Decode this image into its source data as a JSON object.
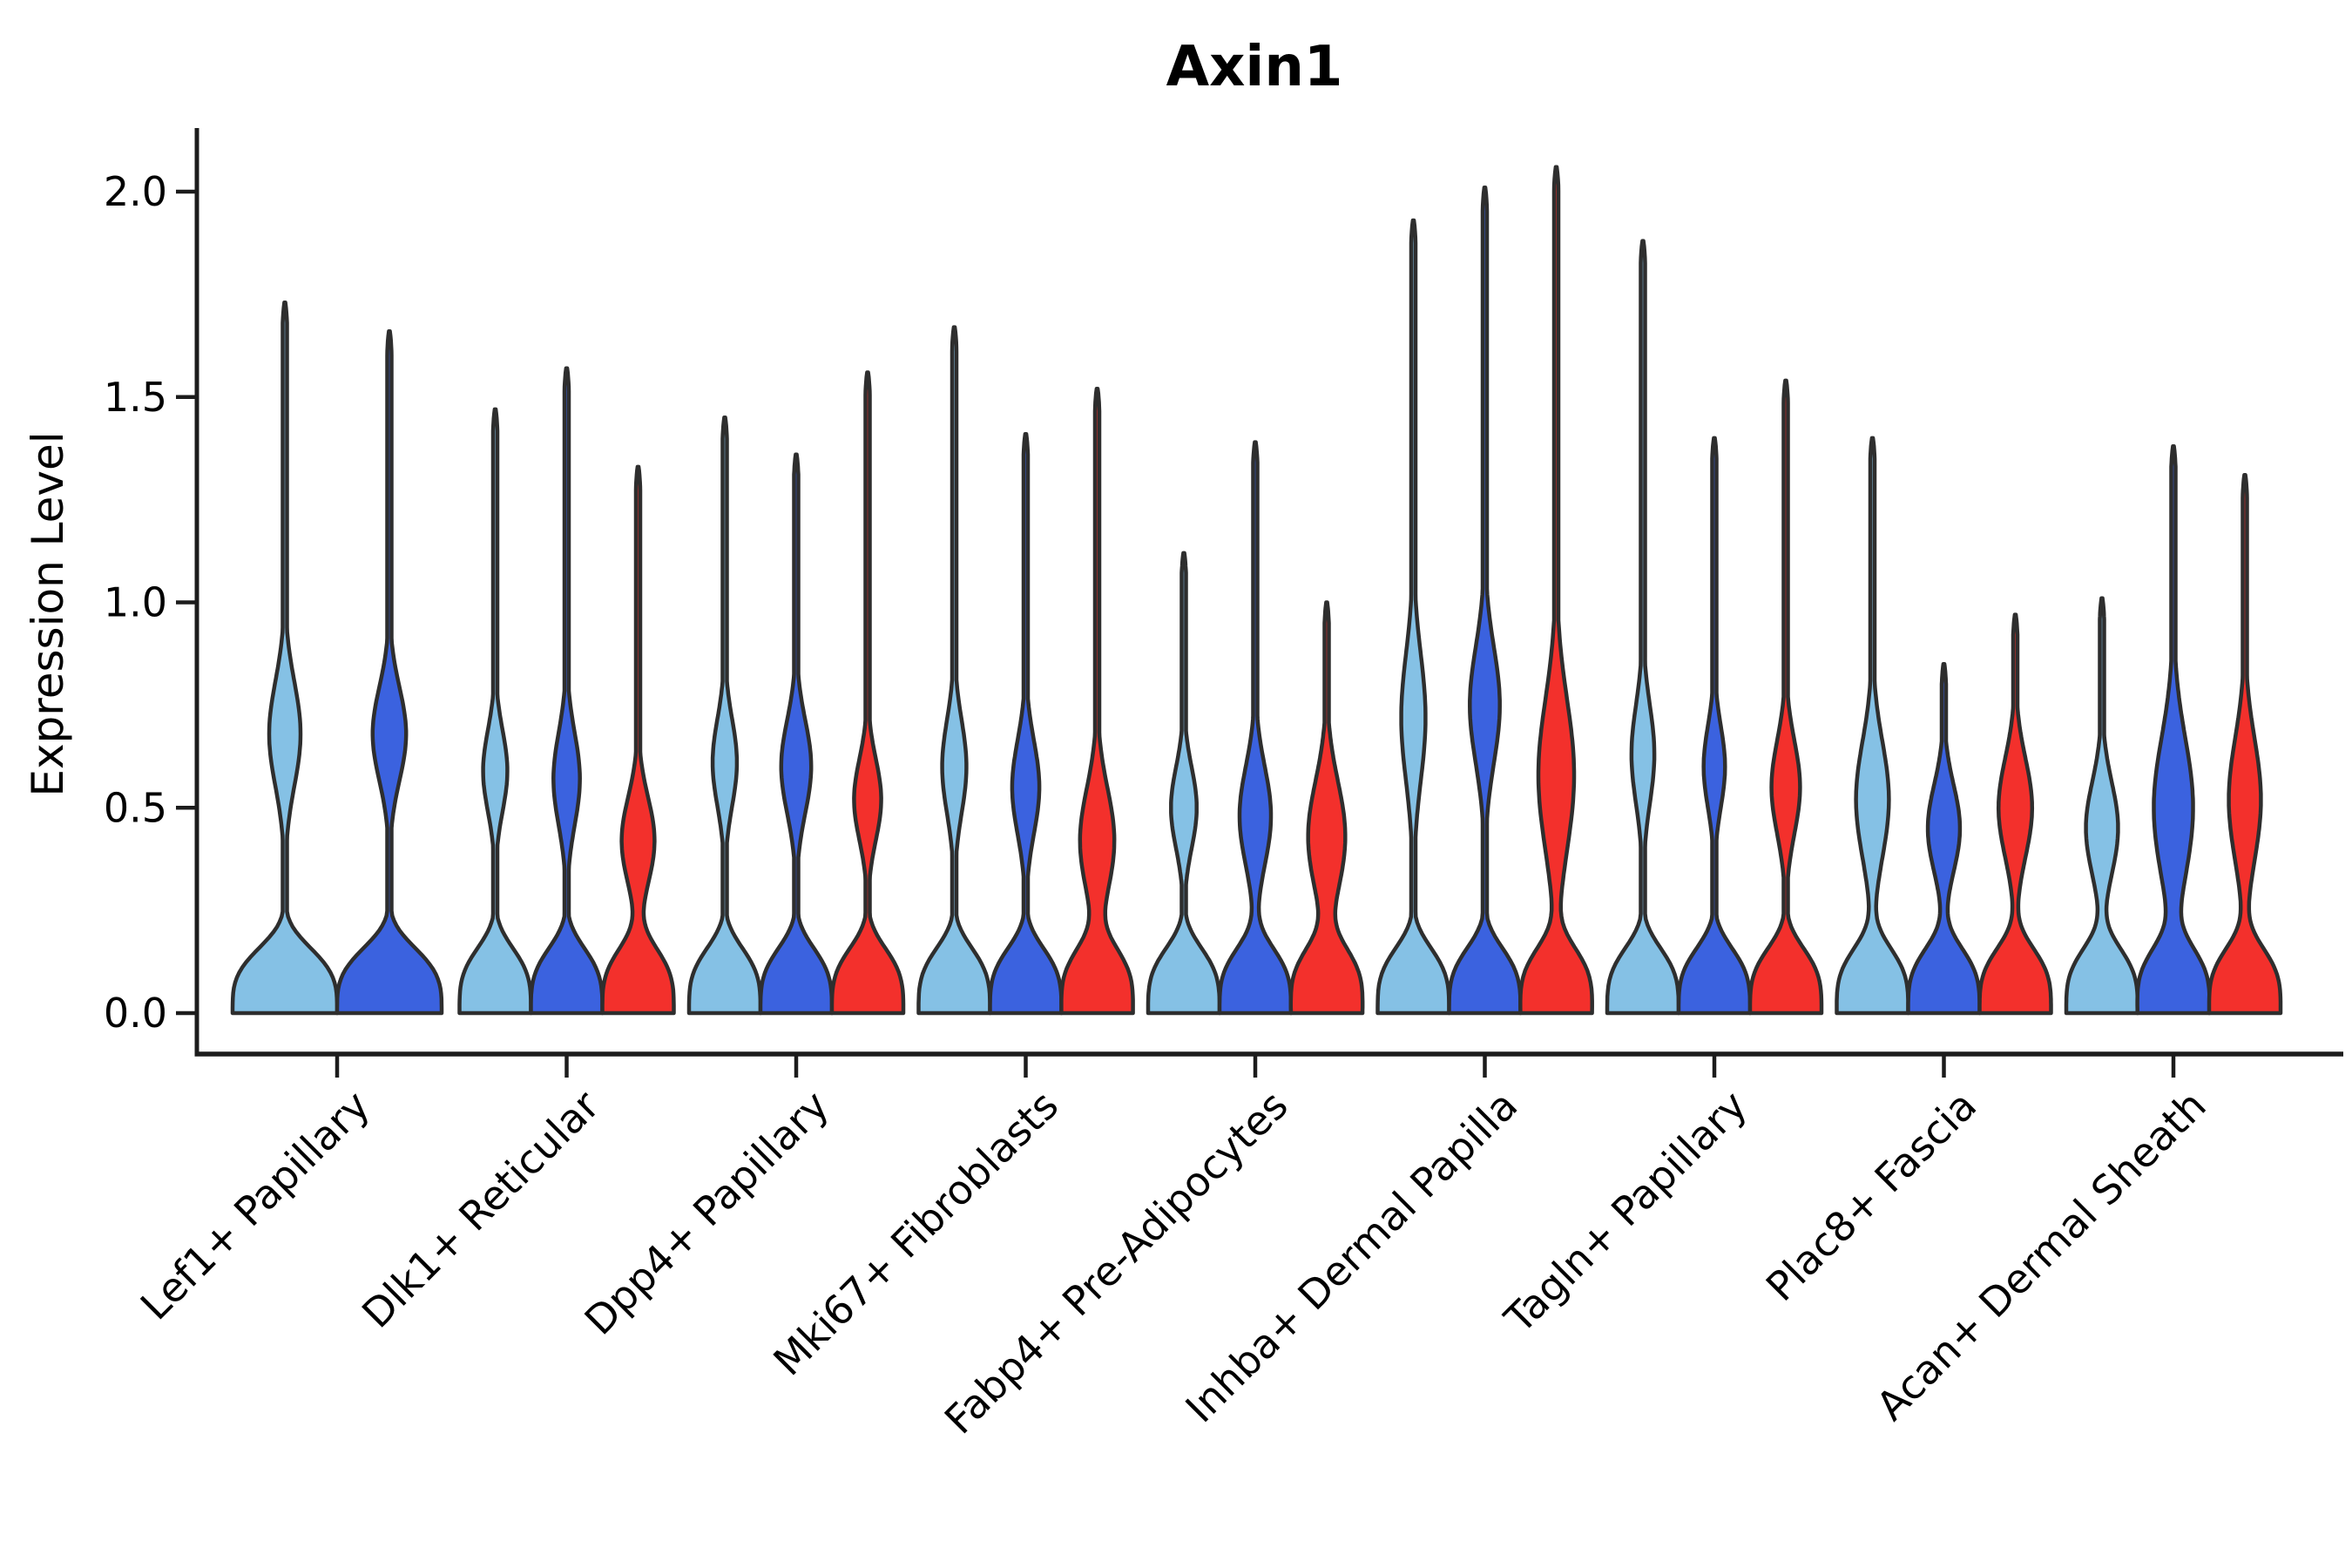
{
  "figure": {
    "background": "#ffffff"
  },
  "chart_data": {
    "type": "violin",
    "title": "Axin1",
    "xlabel": "",
    "ylabel": "Expression Level",
    "y_ticks": [
      "0.0",
      "0.5",
      "1.0",
      "1.5",
      "2.0"
    ],
    "y_tick_values": [
      0,
      0.5,
      1.0,
      1.5,
      2.0
    ],
    "ylim": [
      -0.1,
      2.15
    ],
    "grid": false,
    "legend": "none",
    "categories": [
      "Lef1+ Papillary",
      "Dlk1+ Reticular",
      "Dpp4+ Papillary",
      "Mki67+ Fibroblasts",
      "Fabp4+ Pre-Adipocytes",
      "Inhba+ Dermal Papilla",
      "Tagln+ Papillary",
      "Plac8+ Fascia",
      "Acan+ Dermal Sheath"
    ],
    "splits": [
      {
        "id": "split-1",
        "color": "#85C1E5"
      },
      {
        "id": "split-2",
        "color": "#3B62DF"
      },
      {
        "id": "split-3",
        "color": "#F3302C"
      }
    ],
    "outline_color": "#2E2E2E",
    "axis_color": "#1C1C1C",
    "text_color": "#000000",
    "violins": [
      {
        "category": "Lef1+ Papillary",
        "split": "split-1",
        "max": 1.73,
        "bulge_center": 0.68,
        "bulge_sigma": 0.18,
        "bulge_amp": 0.3
      },
      {
        "category": "Lef1+ Papillary",
        "split": "split-2",
        "max": 1.66,
        "bulge_center": 0.68,
        "bulge_sigma": 0.16,
        "bulge_amp": 0.32
      },
      {
        "category": "Dlk1+ Reticular",
        "split": "split-1",
        "max": 1.47,
        "bulge_center": 0.59,
        "bulge_sigma": 0.14,
        "bulge_amp": 0.34
      },
      {
        "category": "Dlk1+ Reticular",
        "split": "split-2",
        "max": 1.57,
        "bulge_center": 0.57,
        "bulge_sigma": 0.16,
        "bulge_amp": 0.37
      },
      {
        "category": "Dlk1+ Reticular",
        "split": "split-3",
        "max": 1.33,
        "bulge_center": 0.42,
        "bulge_sigma": 0.15,
        "bulge_amp": 0.46
      },
      {
        "category": "Dpp4+ Papillary",
        "split": "split-1",
        "max": 1.45,
        "bulge_center": 0.61,
        "bulge_sigma": 0.15,
        "bulge_amp": 0.34
      },
      {
        "category": "Dpp4+ Papillary",
        "split": "split-2",
        "max": 1.36,
        "bulge_center": 0.6,
        "bulge_sigma": 0.16,
        "bulge_amp": 0.42
      },
      {
        "category": "Dpp4+ Papillary",
        "split": "split-3",
        "max": 1.56,
        "bulge_center": 0.52,
        "bulge_sigma": 0.14,
        "bulge_amp": 0.38
      },
      {
        "category": "Mki67+ Fibroblasts",
        "split": "split-1",
        "max": 1.67,
        "bulge_center": 0.6,
        "bulge_sigma": 0.16,
        "bulge_amp": 0.34
      },
      {
        "category": "Mki67+ Fibroblasts",
        "split": "split-2",
        "max": 1.41,
        "bulge_center": 0.55,
        "bulge_sigma": 0.16,
        "bulge_amp": 0.38
      },
      {
        "category": "Mki67+ Fibroblasts",
        "split": "split-3",
        "max": 1.52,
        "bulge_center": 0.42,
        "bulge_sigma": 0.18,
        "bulge_amp": 0.48
      },
      {
        "category": "Fabp4+ Pre-Adipocytes",
        "split": "split-1",
        "max": 1.12,
        "bulge_center": 0.5,
        "bulge_sigma": 0.14,
        "bulge_amp": 0.36
      },
      {
        "category": "Fabp4+ Pre-Adipocytes",
        "split": "split-2",
        "max": 1.39,
        "bulge_center": 0.48,
        "bulge_sigma": 0.17,
        "bulge_amp": 0.44
      },
      {
        "category": "Fabp4+ Pre-Adipocytes",
        "split": "split-3",
        "max": 1.0,
        "bulge_center": 0.43,
        "bulge_sigma": 0.19,
        "bulge_amp": 0.52
      },
      {
        "category": "Inhba+ Dermal Papilla",
        "split": "split-1",
        "max": 1.93,
        "bulge_center": 0.72,
        "bulge_sigma": 0.22,
        "bulge_amp": 0.34
      },
      {
        "category": "Inhba+ Dermal Papilla",
        "split": "split-2",
        "max": 2.01,
        "bulge_center": 0.75,
        "bulge_sigma": 0.2,
        "bulge_amp": 0.42
      },
      {
        "category": "Inhba+ Dermal Papilla",
        "split": "split-3",
        "max": 2.06,
        "bulge_center": 0.58,
        "bulge_sigma": 0.26,
        "bulge_amp": 0.5
      },
      {
        "category": "Tagln+ Papillary",
        "split": "split-1",
        "max": 1.88,
        "bulge_center": 0.63,
        "bulge_sigma": 0.17,
        "bulge_amp": 0.32
      },
      {
        "category": "Tagln+ Papillary",
        "split": "split-2",
        "max": 1.4,
        "bulge_center": 0.6,
        "bulge_sigma": 0.14,
        "bulge_amp": 0.3
      },
      {
        "category": "Tagln+ Papillary",
        "split": "split-3",
        "max": 1.54,
        "bulge_center": 0.55,
        "bulge_sigma": 0.16,
        "bulge_amp": 0.4
      },
      {
        "category": "Plac8+ Fascia",
        "split": "split-1",
        "max": 1.4,
        "bulge_center": 0.52,
        "bulge_sigma": 0.2,
        "bulge_amp": 0.46
      },
      {
        "category": "Plac8+ Fascia",
        "split": "split-2",
        "max": 0.85,
        "bulge_center": 0.45,
        "bulge_sigma": 0.15,
        "bulge_amp": 0.45
      },
      {
        "category": "Plac8+ Fascia",
        "split": "split-3",
        "max": 0.97,
        "bulge_center": 0.5,
        "bulge_sigma": 0.17,
        "bulge_amp": 0.47
      },
      {
        "category": "Acan+ Dermal Sheath",
        "split": "split-1",
        "max": 1.01,
        "bulge_center": 0.45,
        "bulge_sigma": 0.16,
        "bulge_amp": 0.45
      },
      {
        "category": "Acan+ Dermal Sheath",
        "split": "split-2",
        "max": 1.38,
        "bulge_center": 0.5,
        "bulge_sigma": 0.24,
        "bulge_amp": 0.55
      },
      {
        "category": "Acan+ Dermal Sheath",
        "split": "split-3",
        "max": 1.31,
        "bulge_center": 0.52,
        "bulge_sigma": 0.21,
        "bulge_amp": 0.45
      }
    ]
  }
}
